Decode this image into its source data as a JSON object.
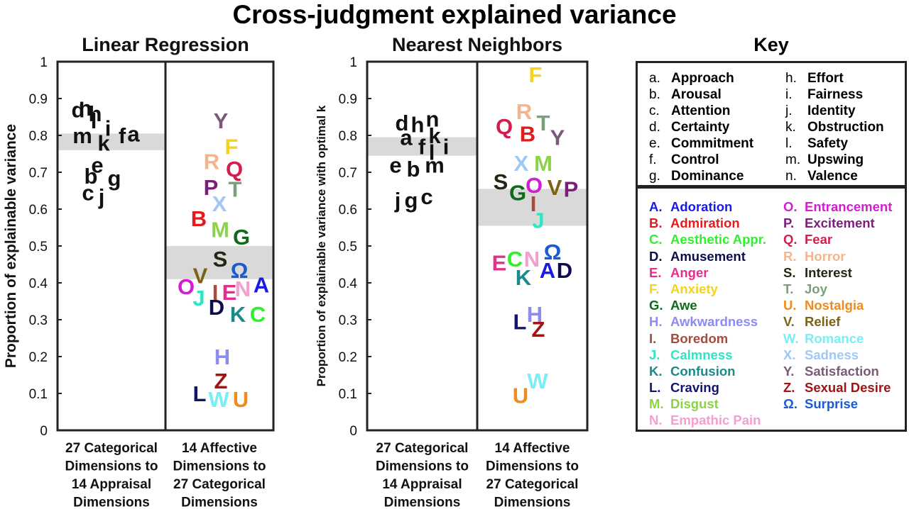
{
  "title": "Cross-judgment explained variance",
  "charts": [
    {
      "name": "linear-regression",
      "title": "Linear Regression",
      "ylabel": "Proportion of explainable variance",
      "ylim": [
        0,
        1
      ],
      "yticks": [
        "0",
        "0.1",
        "0.2",
        "0.3",
        "0.4",
        "0.5",
        "0.6",
        "0.7",
        "0.8",
        "0.9",
        "1"
      ],
      "panels": [
        {
          "label": [
            "27 Categorical",
            "Dimensions to",
            "14 Appraisal",
            "Dimensions"
          ],
          "band": [
            0.76,
            0.805
          ],
          "points": [
            {
              "id": "d",
              "y": 0.87
            },
            {
              "id": "n",
              "y": 0.875
            },
            {
              "id": "h",
              "y": 0.86
            },
            {
              "id": "l",
              "y": 0.84
            },
            {
              "id": "i",
              "y": 0.82
            },
            {
              "id": "m",
              "y": 0.8
            },
            {
              "id": "f",
              "y": 0.8
            },
            {
              "id": "a",
              "y": 0.805
            },
            {
              "id": "k",
              "y": 0.78
            },
            {
              "id": "e",
              "y": 0.72
            },
            {
              "id": "b",
              "y": 0.69
            },
            {
              "id": "g",
              "y": 0.685
            },
            {
              "id": "c",
              "y": 0.645
            },
            {
              "id": "j",
              "y": 0.635
            }
          ]
        },
        {
          "label": [
            "14 Affective",
            "Dimensions to",
            "27 Categorical",
            "Dimensions"
          ],
          "band": [
            0.41,
            0.5
          ],
          "points": [
            {
              "id": "Y",
              "y": 0.84
            },
            {
              "id": "F",
              "y": 0.77
            },
            {
              "id": "R",
              "y": 0.73
            },
            {
              "id": "Q",
              "y": 0.71
            },
            {
              "id": "P",
              "y": 0.66
            },
            {
              "id": "T",
              "y": 0.655
            },
            {
              "id": "X",
              "y": 0.615
            },
            {
              "id": "B",
              "y": 0.575
            },
            {
              "id": "M",
              "y": 0.545
            },
            {
              "id": "G",
              "y": 0.525
            },
            {
              "id": "S",
              "y": 0.465
            },
            {
              "id": "Ω",
              "y": 0.435
            },
            {
              "id": "V",
              "y": 0.42
            },
            {
              "id": "A",
              "y": 0.395
            },
            {
              "id": "O",
              "y": 0.39
            },
            {
              "id": "I",
              "y": 0.375
            },
            {
              "id": "E",
              "y": 0.375
            },
            {
              "id": "N",
              "y": 0.385
            },
            {
              "id": "J",
              "y": 0.36
            },
            {
              "id": "D",
              "y": 0.335
            },
            {
              "id": "K",
              "y": 0.315
            },
            {
              "id": "C",
              "y": 0.315
            },
            {
              "id": "H",
              "y": 0.2
            },
            {
              "id": "Z",
              "y": 0.135
            },
            {
              "id": "L",
              "y": 0.1
            },
            {
              "id": "W",
              "y": 0.085
            },
            {
              "id": "U",
              "y": 0.085
            }
          ]
        }
      ]
    },
    {
      "name": "nearest-neighbors",
      "title": "Nearest Neighbors",
      "ylabel": "Proportion of explainable variance with optimal k",
      "ylim": [
        0,
        1
      ],
      "yticks": [
        "0",
        "0.1",
        "0.2",
        "0.3",
        "0.4",
        "0.5",
        "0.6",
        "0.7",
        "0.8",
        "0.9",
        "1"
      ],
      "panels": [
        {
          "label": [
            "27 Categorical",
            "Dimensions to",
            "14 Appraisal",
            "Dimensions"
          ],
          "band": [
            0.745,
            0.795
          ],
          "points": [
            {
              "id": "d",
              "y": 0.835
            },
            {
              "id": "h",
              "y": 0.83
            },
            {
              "id": "n",
              "y": 0.845
            },
            {
              "id": "a",
              "y": 0.795
            },
            {
              "id": "k",
              "y": 0.8
            },
            {
              "id": "f",
              "y": 0.77
            },
            {
              "id": "l",
              "y": 0.755
            },
            {
              "id": "i",
              "y": 0.77
            },
            {
              "id": "e",
              "y": 0.72
            },
            {
              "id": "b",
              "y": 0.71
            },
            {
              "id": "m",
              "y": 0.72
            },
            {
              "id": "j",
              "y": 0.625
            },
            {
              "id": "g",
              "y": 0.625
            },
            {
              "id": "c",
              "y": 0.635
            }
          ]
        },
        {
          "label": [
            "14 Affective",
            "Dimensions to",
            "27 Categorical",
            "Dimensions"
          ],
          "band": [
            0.555,
            0.655
          ],
          "points": [
            {
              "id": "F",
              "y": 0.965
            },
            {
              "id": "R",
              "y": 0.865
            },
            {
              "id": "T",
              "y": 0.835
            },
            {
              "id": "Q",
              "y": 0.825
            },
            {
              "id": "B",
              "y": 0.805
            },
            {
              "id": "Y",
              "y": 0.795
            },
            {
              "id": "X",
              "y": 0.725
            },
            {
              "id": "M",
              "y": 0.725
            },
            {
              "id": "S",
              "y": 0.675
            },
            {
              "id": "O",
              "y": 0.665
            },
            {
              "id": "V",
              "y": 0.66
            },
            {
              "id": "P",
              "y": 0.655
            },
            {
              "id": "G",
              "y": 0.645
            },
            {
              "id": "I",
              "y": 0.615
            },
            {
              "id": "J",
              "y": 0.57
            },
            {
              "id": "Ω",
              "y": 0.485
            },
            {
              "id": "E",
              "y": 0.455
            },
            {
              "id": "C",
              "y": 0.465
            },
            {
              "id": "N",
              "y": 0.465
            },
            {
              "id": "A",
              "y": 0.435
            },
            {
              "id": "D",
              "y": 0.435
            },
            {
              "id": "K",
              "y": 0.415
            },
            {
              "id": "H",
              "y": 0.315
            },
            {
              "id": "L",
              "y": 0.295
            },
            {
              "id": "Z",
              "y": 0.275
            },
            {
              "id": "W",
              "y": 0.135
            },
            {
              "id": "U",
              "y": 0.095
            }
          ]
        }
      ]
    }
  ],
  "key": {
    "title": "Key",
    "appraisal": [
      {
        "letter": "a.",
        "name": "Approach"
      },
      {
        "letter": "b.",
        "name": "Arousal"
      },
      {
        "letter": "c.",
        "name": "Attention"
      },
      {
        "letter": "d.",
        "name": "Certainty"
      },
      {
        "letter": "e.",
        "name": "Commitment"
      },
      {
        "letter": "f.",
        "name": "Control"
      },
      {
        "letter": "g.",
        "name": "Dominance"
      },
      {
        "letter": "h.",
        "name": "Effort"
      },
      {
        "letter": "i.",
        "name": "Fairness"
      },
      {
        "letter": "j.",
        "name": "Identity"
      },
      {
        "letter": "k.",
        "name": "Obstruction"
      },
      {
        "letter": "l.",
        "name": "Safety"
      },
      {
        "letter": "m.",
        "name": "Upswing"
      },
      {
        "letter": "n.",
        "name": "Valence"
      }
    ],
    "categories": [
      {
        "letter": "A.",
        "name": "Adoration",
        "color": "#1a1ae6"
      },
      {
        "letter": "B.",
        "name": "Admiration",
        "color": "#e61a1a"
      },
      {
        "letter": "C.",
        "name": "Aesthetic Appr.",
        "color": "#2ef02e"
      },
      {
        "letter": "D.",
        "name": "Amusement",
        "color": "#0d0d4d"
      },
      {
        "letter": "E.",
        "name": "Anger",
        "color": "#e62e8c"
      },
      {
        "letter": "F.",
        "name": "Anxiety",
        "color": "#f5d21e"
      },
      {
        "letter": "G.",
        "name": "Awe",
        "color": "#0d6b1a"
      },
      {
        "letter": "H.",
        "name": "Awkwardness",
        "color": "#8c8cf0"
      },
      {
        "letter": "I.",
        "name": "Boredom",
        "color": "#a84a3e"
      },
      {
        "letter": "J.",
        "name": "Calmness",
        "color": "#2ee6c2"
      },
      {
        "letter": "K.",
        "name": "Confusion",
        "color": "#1a8a8a"
      },
      {
        "letter": "L.",
        "name": "Craving",
        "color": "#14146e"
      },
      {
        "letter": "M.",
        "name": "Disgust",
        "color": "#8cd24a"
      },
      {
        "letter": "N.",
        "name": "Empathic Pain",
        "color": "#f59ed2"
      },
      {
        "letter": "O.",
        "name": "Entrancement",
        "color": "#d21ed2"
      },
      {
        "letter": "P.",
        "name": "Excitement",
        "color": "#7a1e7a"
      },
      {
        "letter": "Q.",
        "name": "Fear",
        "color": "#d21e4e"
      },
      {
        "letter": "R.",
        "name": "Horror",
        "color": "#f5b48c"
      },
      {
        "letter": "S.",
        "name": "Interest",
        "color": "#262614"
      },
      {
        "letter": "T.",
        "name": "Joy",
        "color": "#7aa07a"
      },
      {
        "letter": "U.",
        "name": "Nostalgia",
        "color": "#f08c1e"
      },
      {
        "letter": "V.",
        "name": "Relief",
        "color": "#7a6414"
      },
      {
        "letter": "W.",
        "name": "Romance",
        "color": "#7aeef5"
      },
      {
        "letter": "X.",
        "name": "Sadness",
        "color": "#a0c8f5"
      },
      {
        "letter": "Y.",
        "name": "Satisfaction",
        "color": "#7a5a7a"
      },
      {
        "letter": "Z.",
        "name": "Sexual Desire",
        "color": "#a01414"
      },
      {
        "letter": "Ω.",
        "name": "Surprise",
        "color": "#1a5ad2"
      }
    ]
  },
  "chart_data": [
    {
      "type": "scatter",
      "title": "Linear Regression",
      "ylabel": "Proportion of explainable variance",
      "ylim": [
        0,
        1
      ],
      "categories": [
        "27 Categorical Dimensions to 14 Appraisal Dimensions",
        "14 Affective Dimensions to 27 Categorical Dimensions"
      ]
    },
    {
      "type": "scatter",
      "title": "Nearest Neighbors",
      "ylabel": "Proportion of explainable variance with optimal k",
      "ylim": [
        0,
        1
      ],
      "categories": [
        "27 Categorical Dimensions to 14 Appraisal Dimensions",
        "14 Affective Dimensions to 27 Categorical Dimensions"
      ]
    }
  ]
}
